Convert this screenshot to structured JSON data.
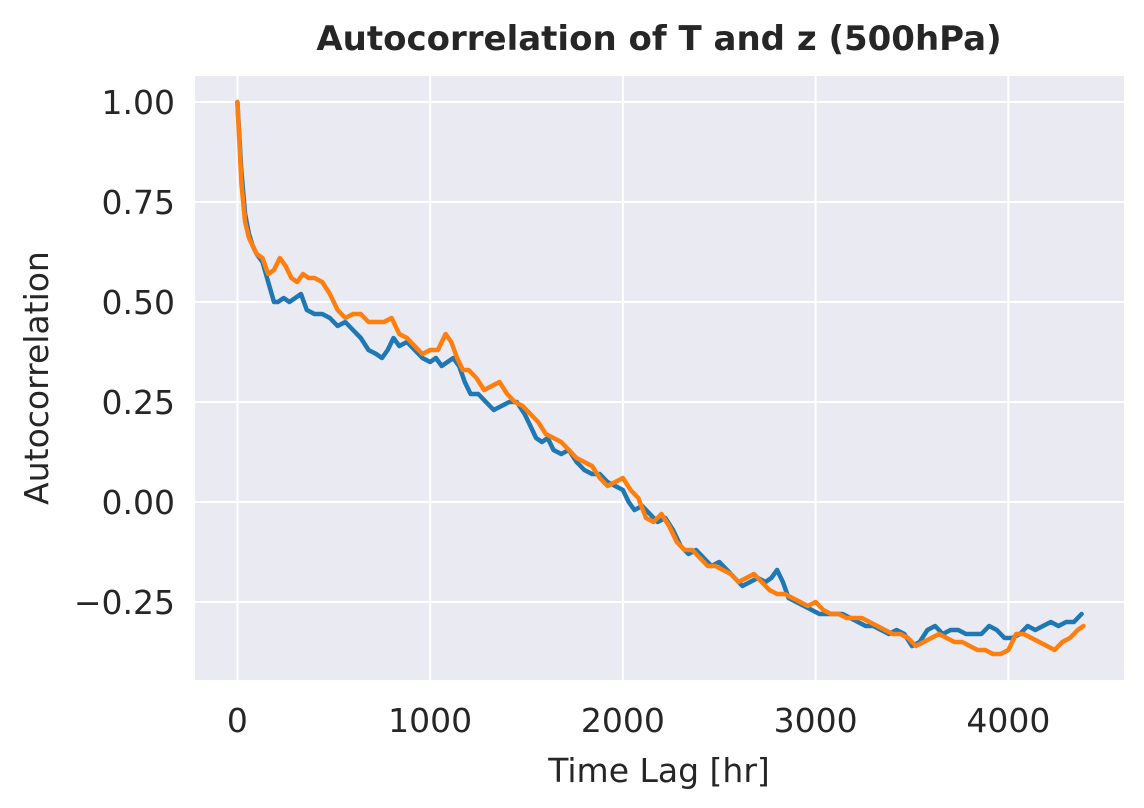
{
  "chart_data": {
    "type": "line",
    "title": "Autocorrelation of T and z (500hPa)",
    "xlabel": "Time Lag [hr]",
    "ylabel": "Autocorrelation",
    "xlim": [
      -220,
      4600
    ],
    "ylim": [
      -0.445,
      1.065
    ],
    "xticks": [
      0,
      1000,
      2000,
      3000,
      4000
    ],
    "xtick_labels": [
      "0",
      "1000",
      "2000",
      "3000",
      "4000"
    ],
    "yticks": [
      -0.25,
      0.0,
      0.25,
      0.5,
      0.75,
      1.0
    ],
    "ytick_labels": [
      "−0.25",
      "0.00",
      "0.25",
      "0.50",
      "0.75",
      "1.00"
    ],
    "grid": true,
    "background": "#eaeaf2",
    "series": [
      {
        "color": "#1f77b4",
        "x": [
          0,
          20,
          40,
          60,
          80,
          100,
          130,
          160,
          190,
          210,
          240,
          270,
          300,
          330,
          360,
          400,
          440,
          480,
          520,
          560,
          600,
          640,
          680,
          720,
          750,
          780,
          810,
          840,
          880,
          920,
          960,
          1000,
          1030,
          1060,
          1090,
          1120,
          1150,
          1180,
          1210,
          1250,
          1290,
          1330,
          1370,
          1410,
          1450,
          1490,
          1520,
          1550,
          1580,
          1610,
          1640,
          1680,
          1720,
          1760,
          1800,
          1840,
          1880,
          1920,
          1960,
          2000,
          2030,
          2060,
          2100,
          2140,
          2180,
          2220,
          2260,
          2300,
          2340,
          2380,
          2420,
          2460,
          2500,
          2540,
          2580,
          2620,
          2660,
          2700,
          2740,
          2770,
          2800,
          2830,
          2860,
          2900,
          2940,
          2980,
          3020,
          3060,
          3100,
          3140,
          3180,
          3220,
          3260,
          3300,
          3340,
          3380,
          3420,
          3460,
          3500,
          3540,
          3580,
          3620,
          3660,
          3700,
          3740,
          3780,
          3820,
          3860,
          3900,
          3940,
          3980,
          4020,
          4060,
          4100,
          4140,
          4180,
          4220,
          4260,
          4300,
          4340,
          4380
        ],
        "y": [
          1.0,
          0.83,
          0.72,
          0.67,
          0.64,
          0.62,
          0.6,
          0.55,
          0.5,
          0.5,
          0.51,
          0.5,
          0.51,
          0.52,
          0.48,
          0.47,
          0.47,
          0.46,
          0.44,
          0.45,
          0.43,
          0.41,
          0.38,
          0.37,
          0.36,
          0.38,
          0.41,
          0.39,
          0.4,
          0.38,
          0.36,
          0.35,
          0.36,
          0.34,
          0.35,
          0.36,
          0.34,
          0.3,
          0.27,
          0.27,
          0.25,
          0.23,
          0.24,
          0.25,
          0.25,
          0.22,
          0.19,
          0.16,
          0.15,
          0.16,
          0.13,
          0.12,
          0.13,
          0.1,
          0.08,
          0.07,
          0.07,
          0.05,
          0.04,
          0.03,
          0.0,
          -0.02,
          -0.01,
          -0.03,
          -0.05,
          -0.04,
          -0.07,
          -0.11,
          -0.13,
          -0.12,
          -0.14,
          -0.16,
          -0.15,
          -0.17,
          -0.19,
          -0.21,
          -0.2,
          -0.19,
          -0.2,
          -0.19,
          -0.17,
          -0.2,
          -0.24,
          -0.25,
          -0.26,
          -0.27,
          -0.28,
          -0.28,
          -0.28,
          -0.28,
          -0.29,
          -0.3,
          -0.31,
          -0.31,
          -0.32,
          -0.33,
          -0.32,
          -0.33,
          -0.36,
          -0.35,
          -0.32,
          -0.31,
          -0.33,
          -0.32,
          -0.32,
          -0.33,
          -0.33,
          -0.33,
          -0.31,
          -0.32,
          -0.34,
          -0.34,
          -0.33,
          -0.31,
          -0.32,
          -0.31,
          -0.3,
          -0.31,
          -0.3,
          -0.3,
          -0.28
        ]
      },
      {
        "color": "#ff7f0e",
        "x": [
          0,
          20,
          40,
          60,
          80,
          100,
          130,
          160,
          190,
          220,
          250,
          280,
          310,
          340,
          370,
          400,
          440,
          480,
          520,
          560,
          600,
          640,
          680,
          720,
          760,
          800,
          840,
          880,
          920,
          960,
          1000,
          1040,
          1080,
          1110,
          1140,
          1170,
          1200,
          1240,
          1280,
          1320,
          1360,
          1400,
          1440,
          1480,
          1520,
          1560,
          1600,
          1640,
          1680,
          1720,
          1760,
          1800,
          1840,
          1880,
          1920,
          1960,
          2000,
          2040,
          2080,
          2120,
          2160,
          2200,
          2240,
          2280,
          2320,
          2360,
          2400,
          2440,
          2480,
          2520,
          2560,
          2600,
          2640,
          2680,
          2720,
          2760,
          2800,
          2840,
          2880,
          2920,
          2960,
          3000,
          3040,
          3080,
          3120,
          3160,
          3200,
          3240,
          3280,
          3320,
          3360,
          3400,
          3440,
          3480,
          3520,
          3560,
          3600,
          3640,
          3680,
          3720,
          3760,
          3800,
          3840,
          3880,
          3920,
          3960,
          4000,
          4040,
          4080,
          4120,
          4160,
          4200,
          4240,
          4280,
          4320,
          4360,
          4390
        ],
        "y": [
          1.0,
          0.8,
          0.7,
          0.66,
          0.64,
          0.62,
          0.61,
          0.57,
          0.58,
          0.61,
          0.59,
          0.56,
          0.55,
          0.57,
          0.56,
          0.56,
          0.55,
          0.52,
          0.48,
          0.46,
          0.47,
          0.47,
          0.45,
          0.45,
          0.45,
          0.46,
          0.42,
          0.41,
          0.39,
          0.37,
          0.38,
          0.38,
          0.42,
          0.4,
          0.36,
          0.33,
          0.33,
          0.31,
          0.28,
          0.29,
          0.3,
          0.27,
          0.25,
          0.24,
          0.22,
          0.2,
          0.17,
          0.16,
          0.15,
          0.13,
          0.11,
          0.1,
          0.09,
          0.06,
          0.04,
          0.05,
          0.06,
          0.03,
          0.01,
          -0.04,
          -0.05,
          -0.03,
          -0.06,
          -0.1,
          -0.12,
          -0.12,
          -0.14,
          -0.16,
          -0.16,
          -0.17,
          -0.18,
          -0.2,
          -0.19,
          -0.18,
          -0.2,
          -0.22,
          -0.23,
          -0.23,
          -0.24,
          -0.25,
          -0.26,
          -0.25,
          -0.27,
          -0.28,
          -0.28,
          -0.29,
          -0.29,
          -0.29,
          -0.3,
          -0.31,
          -0.32,
          -0.33,
          -0.33,
          -0.34,
          -0.36,
          -0.35,
          -0.34,
          -0.33,
          -0.34,
          -0.35,
          -0.35,
          -0.36,
          -0.37,
          -0.37,
          -0.38,
          -0.38,
          -0.37,
          -0.33,
          -0.33,
          -0.34,
          -0.35,
          -0.36,
          -0.37,
          -0.35,
          -0.34,
          -0.32,
          -0.31
        ]
      }
    ]
  }
}
